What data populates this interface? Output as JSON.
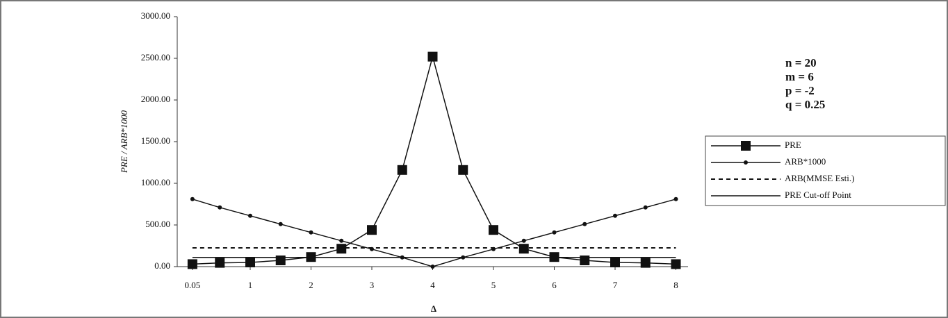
{
  "chart_data": {
    "type": "line",
    "x": [
      0.05,
      0.5,
      1,
      1.5,
      2,
      2.5,
      3,
      3.5,
      4,
      4.5,
      5,
      5.5,
      6,
      6.5,
      7,
      7.5,
      8
    ],
    "series": [
      {
        "name": "PRE",
        "color": "#111111",
        "style": "solid",
        "marker": "square",
        "values": [
          30,
          45,
          50,
          75,
          115,
          215,
          440,
          1160,
          2520,
          1160,
          440,
          215,
          115,
          75,
          50,
          45,
          30
        ]
      },
      {
        "name": "ARB*1000",
        "color": "#111111",
        "style": "solid",
        "marker": "dot",
        "values": [
          810,
          710,
          610,
          510,
          410,
          310,
          210,
          110,
          0,
          110,
          210,
          310,
          410,
          510,
          610,
          710,
          810
        ]
      },
      {
        "name": "ARB(MMSE Esti.)",
        "color": "#111111",
        "style": "dashed",
        "marker": "none",
        "values": [
          225,
          225,
          225,
          225,
          225,
          225,
          225,
          225,
          225,
          225,
          225,
          225,
          225,
          225,
          225,
          225,
          225
        ]
      },
      {
        "name": "PRE Cut-off Point",
        "color": "#111111",
        "style": "solid",
        "marker": "none",
        "values": [
          110,
          110,
          110,
          110,
          110,
          110,
          110,
          110,
          110,
          110,
          110,
          110,
          110,
          110,
          110,
          110,
          110
        ]
      }
    ],
    "xlim": [
      -0.2,
      8.2
    ],
    "xticks": [
      0.05,
      1,
      2,
      3,
      4,
      5,
      6,
      7,
      8
    ],
    "ylim": [
      0,
      3000
    ],
    "yticks": [
      {
        "value": 0,
        "label": "0.00"
      },
      {
        "value": 500,
        "label": "500.00"
      },
      {
        "value": 1000,
        "label": "1000.00"
      },
      {
        "value": 1500,
        "label": "1500.00"
      },
      {
        "value": 2000,
        "label": "2000.00"
      },
      {
        "value": 2500,
        "label": "2500.00"
      },
      {
        "value": 3000,
        "label": "3000.00"
      }
    ],
    "xlabel": "Δ",
    "ylabel": "PRE / ARB*1000",
    "annotations": [
      "n = 20",
      "m = 6",
      "p = -2",
      "q = 0.25"
    ],
    "legend": "right"
  }
}
